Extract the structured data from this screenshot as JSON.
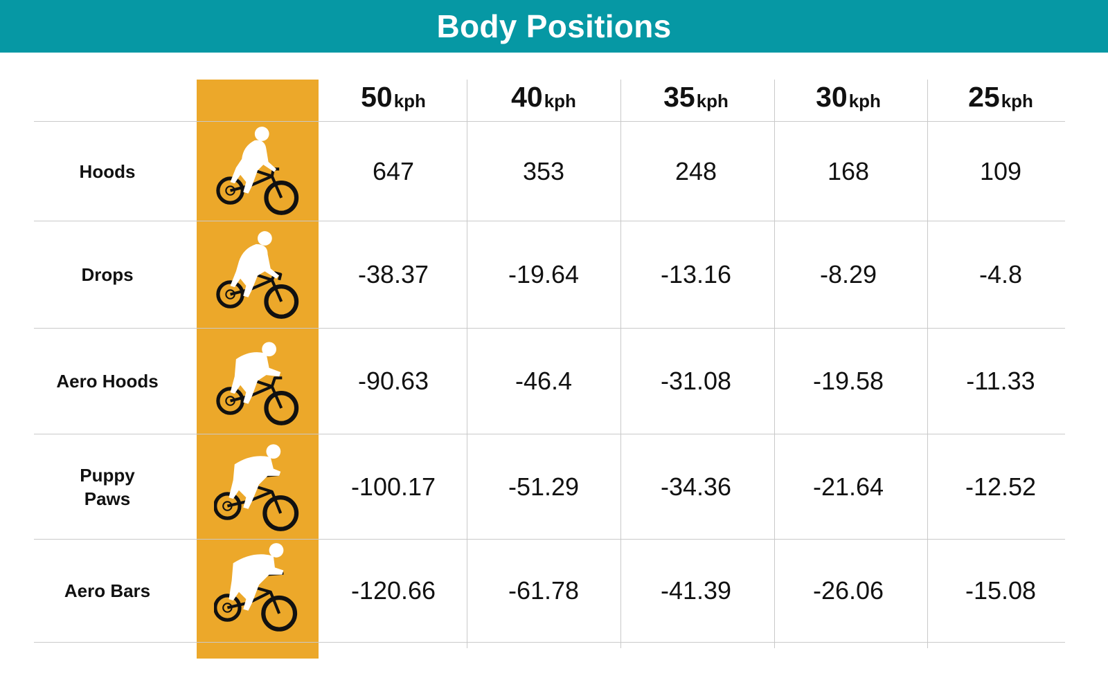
{
  "title": "Body Positions",
  "accent_color": "#0698a4",
  "icon_column_color": "#eca82a",
  "chart_data": {
    "type": "table",
    "title": "Body Positions",
    "columns": [
      {
        "value": "50",
        "unit": "kph"
      },
      {
        "value": "40",
        "unit": "kph"
      },
      {
        "value": "35",
        "unit": "kph"
      },
      {
        "value": "30",
        "unit": "kph"
      },
      {
        "value": "25",
        "unit": "kph"
      }
    ],
    "rows": [
      {
        "label": "Hoods",
        "icon": "cyclist-upright-icon",
        "values": [
          "647",
          "353",
          "248",
          "168",
          "109"
        ]
      },
      {
        "label": "Drops",
        "icon": "cyclist-drops-icon",
        "values": [
          "-38.37",
          "-19.64",
          "-13.16",
          "-8.29",
          "-4.8"
        ]
      },
      {
        "label": "Aero Hoods",
        "icon": "cyclist-aero-hoods-icon",
        "values": [
          "-90.63",
          "-46.4",
          "-31.08",
          "-19.58",
          "-11.33"
        ]
      },
      {
        "label": "Puppy Paws",
        "icon": "cyclist-puppy-paws-icon",
        "values": [
          "-100.17",
          "-51.29",
          "-34.36",
          "-21.64",
          "-12.52"
        ]
      },
      {
        "label": "Aero Bars",
        "icon": "cyclist-aero-bars-icon",
        "values": [
          "-120.66",
          "-61.78",
          "-41.39",
          "-26.06",
          "-15.08"
        ]
      }
    ]
  }
}
